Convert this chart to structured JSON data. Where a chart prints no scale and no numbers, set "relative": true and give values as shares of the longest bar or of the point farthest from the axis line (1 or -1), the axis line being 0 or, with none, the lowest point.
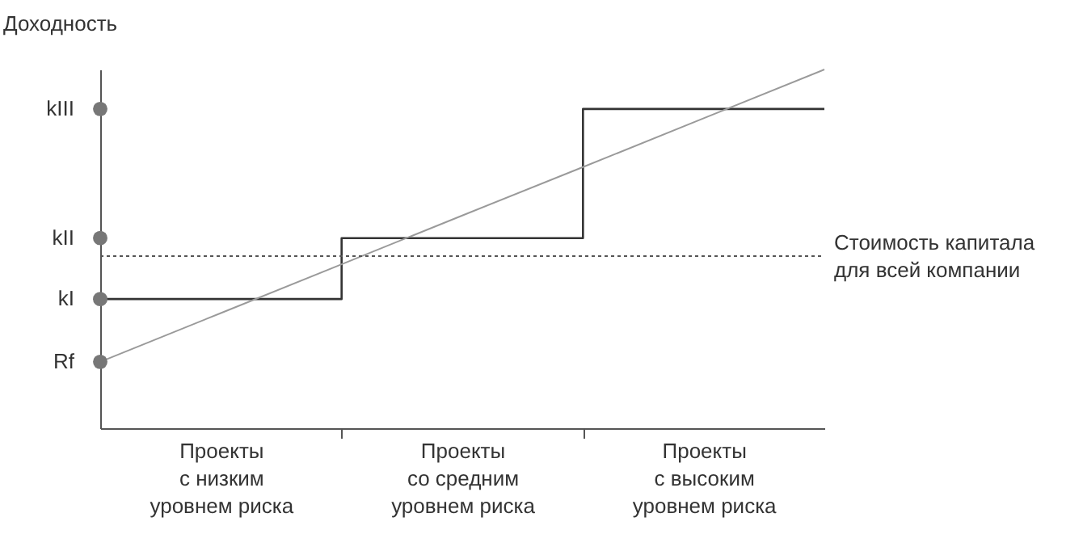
{
  "chart_data": {
    "type": "step",
    "relative": true,
    "ylabel": "Доходность",
    "categories": [
      null,
      "Проекты\nс низким\nуровнем риска",
      null,
      "Проекты\nсо средним\nуровнем риска",
      null,
      "Проекты\nс высоким\nуровнем риска",
      null
    ],
    "series": [
      {
        "color": "#333333",
        "values": [
          0.36,
          0.36,
          0.53,
          0.53,
          0.89,
          0.89,
          0.89
        ]
      },
      {
        "type": "line",
        "color": "#9a9a9a",
        "values": [
          0.185,
          0.321,
          0.457,
          0.593,
          0.728,
          0.864,
          1
        ]
      },
      {
        "type": "scatter",
        "name": "Rf",
        "color": "#777777",
        "marker": "circle",
        "values": [
          0.185,
          null,
          null,
          null,
          null,
          null,
          null
        ]
      },
      {
        "type": "scatter",
        "name": "kI",
        "color": "#777777",
        "marker": "circle",
        "values": [
          0.36,
          null,
          null,
          null,
          null,
          null,
          null
        ]
      },
      {
        "type": "scatter",
        "name": "kII",
        "color": "#777777",
        "marker": "circle",
        "values": [
          0.53,
          null,
          null,
          null,
          null,
          null,
          null
        ]
      },
      {
        "type": "scatter",
        "name": "kIII",
        "color": "#777777",
        "marker": "circle",
        "values": [
          0.89,
          null,
          null,
          null,
          null,
          null,
          null
        ]
      }
    ],
    "ref_lines": [
      {
        "axis": "y",
        "value": 0.48,
        "label": "Стоимость капитала\nдля всей компании",
        "color": "#555555",
        "line_style": "dotted"
      }
    ]
  }
}
